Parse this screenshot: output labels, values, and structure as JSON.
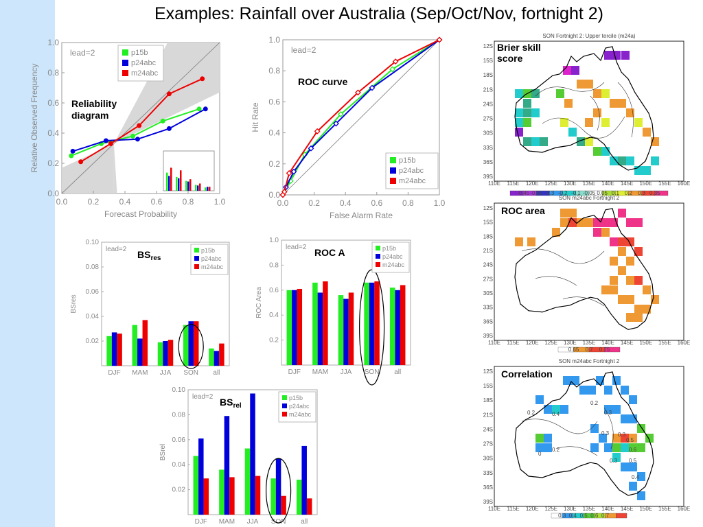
{
  "slide": {
    "title": "Examples: Rainfall over Australia (Sep/Oct/Nov, fortnight 2)",
    "left_band_color": "#cde6fb"
  },
  "series_colors": {
    "p15b": "#22ee22",
    "p24abc": "#0000dd",
    "m24abc": "#ee0000"
  },
  "chart_data": [
    {
      "id": "reliability",
      "type": "line",
      "annotation": "Reliability diagram",
      "lead_label": "lead=2",
      "xlabel": "Forecast Probability",
      "ylabel": "Relative Observed Frequency",
      "xlim": [
        0,
        1
      ],
      "ylim": [
        0,
        1
      ],
      "ticks": [
        "0.0",
        "0.2",
        "0.4",
        "0.6",
        "0.8",
        "1.0"
      ],
      "legend": {
        "placement": "top-left",
        "entries": [
          "p15b",
          "p24abc",
          "m24abc"
        ]
      },
      "series": [
        {
          "name": "p15b",
          "points": [
            [
              0.06,
              0.25
            ],
            [
              0.25,
              0.33
            ],
            [
              0.45,
              0.38
            ],
            [
              0.64,
              0.48
            ],
            [
              0.87,
              0.56
            ]
          ]
        },
        {
          "name": "p24abc",
          "points": [
            [
              0.07,
              0.28
            ],
            [
              0.28,
              0.35
            ],
            [
              0.48,
              0.36
            ],
            [
              0.68,
              0.43
            ],
            [
              0.91,
              0.56
            ]
          ]
        },
        {
          "name": "m24abc",
          "points": [
            [
              0.12,
              0.21
            ],
            [
              0.31,
              0.33
            ],
            [
              0.49,
              0.45
            ],
            [
              0.68,
              0.66
            ],
            [
              0.89,
              0.76
            ]
          ]
        }
      ],
      "inset_histogram": {
        "bins": 5,
        "p15b": [
          0.55,
          0.42,
          0.3,
          0.18,
          0.1
        ],
        "p24abc": [
          0.45,
          0.38,
          0.28,
          0.16,
          0.12
        ],
        "m24abc": [
          0.7,
          0.62,
          0.35,
          0.22,
          0.12
        ]
      }
    },
    {
      "id": "roc-curve",
      "type": "line",
      "annotation": "ROC curve",
      "lead_label": "lead=2",
      "xlabel": "False Alarm Rate",
      "ylabel": "Hit Rate",
      "xlim": [
        0,
        1
      ],
      "ylim": [
        0,
        1
      ],
      "ticks": [
        "0.0",
        "0.2",
        "0.4",
        "0.6",
        "0.8",
        "1.0"
      ],
      "legend": {
        "placement": "bottom-right",
        "entries": [
          "p15b",
          "p24abc",
          "m24abc"
        ]
      },
      "series": [
        {
          "name": "p15b",
          "points": [
            [
              0,
              0
            ],
            [
              0.05,
              0.09
            ],
            [
              0.14,
              0.26
            ],
            [
              0.37,
              0.52
            ],
            [
              0.7,
              0.81
            ],
            [
              1,
              1
            ]
          ]
        },
        {
          "name": "p24abc",
          "points": [
            [
              0,
              0
            ],
            [
              0.02,
              0.05
            ],
            [
              0.07,
              0.15
            ],
            [
              0.18,
              0.3
            ],
            [
              0.34,
              0.46
            ],
            [
              0.57,
              0.69
            ],
            [
              1,
              1
            ]
          ]
        },
        {
          "name": "m24abc",
          "points": [
            [
              0,
              0
            ],
            [
              0.01,
              0.02
            ],
            [
              0.04,
              0.14
            ],
            [
              0.22,
              0.41
            ],
            [
              0.48,
              0.66
            ],
            [
              0.72,
              0.86
            ],
            [
              1,
              1
            ]
          ]
        }
      ]
    },
    {
      "id": "bs-res",
      "type": "bar",
      "title": "BS",
      "title_sub": "res",
      "lead_label": "lead=2",
      "ylabel": "BSres",
      "ylim": [
        0,
        0.1
      ],
      "yticks": [
        "0.10",
        "0.08",
        "0.06",
        "0.04",
        "0.02"
      ],
      "categories": [
        "DJF",
        "MAM",
        "JJA",
        "SON",
        "all"
      ],
      "highlight": "SON",
      "legend": {
        "placement": "top-right",
        "entries": [
          "p15b",
          "p24abc",
          "m24abc"
        ]
      },
      "series": [
        {
          "name": "p15b",
          "values": [
            0.024,
            0.033,
            0.019,
            0.033,
            0.014
          ]
        },
        {
          "name": "p24abc",
          "values": [
            0.027,
            0.022,
            0.02,
            0.036,
            0.012
          ]
        },
        {
          "name": "m24abc",
          "values": [
            0.026,
            0.037,
            0.021,
            0.036,
            0.018
          ]
        }
      ]
    },
    {
      "id": "roc-a",
      "type": "bar",
      "title": "ROC A",
      "lead_label": "lead=2",
      "ylabel": "ROC Area",
      "ylim": [
        0,
        1.0
      ],
      "yticks": [
        "1.0",
        "0.8",
        "0.6",
        "0.4",
        "0.2"
      ],
      "categories": [
        "DJF",
        "MAM",
        "JJA",
        "SON",
        "all"
      ],
      "highlight": "SON",
      "legend": {
        "placement": "top-right",
        "entries": [
          "p15b",
          "p24abc",
          "m24abc"
        ]
      },
      "series": [
        {
          "name": "p15b",
          "values": [
            0.6,
            0.66,
            0.56,
            0.66,
            0.62
          ]
        },
        {
          "name": "p24abc",
          "values": [
            0.6,
            0.58,
            0.53,
            0.66,
            0.6
          ]
        },
        {
          "name": "m24abc",
          "values": [
            0.61,
            0.67,
            0.58,
            0.67,
            0.64
          ]
        }
      ]
    },
    {
      "id": "bs-rel",
      "type": "bar",
      "title": "BS",
      "title_sub": "rel",
      "lead_label": "lead=2",
      "ylabel": "BSrel",
      "ylim": [
        0,
        0.1
      ],
      "yticks": [
        "0.10",
        "0.08",
        "0.06",
        "0.04",
        "0.02"
      ],
      "categories": [
        "DJF",
        "MAM",
        "JJA",
        "SON",
        "all"
      ],
      "highlight": "SON",
      "legend": {
        "placement": "top-right",
        "entries": [
          "p15b",
          "p24abc",
          "m24abc"
        ]
      },
      "series": [
        {
          "name": "p15b",
          "values": [
            0.047,
            0.036,
            0.053,
            0.029,
            0.028
          ]
        },
        {
          "name": "p24abc",
          "values": [
            0.061,
            0.079,
            0.097,
            0.045,
            0.055
          ]
        },
        {
          "name": "m24abc",
          "values": [
            0.029,
            0.03,
            0.031,
            0.015,
            0.013
          ]
        }
      ]
    },
    {
      "id": "brier-map",
      "type": "heatmap",
      "title": "SON Fortnight 2: Upper tercile (m24a)",
      "annotation": "Brier skill score",
      "colorbar": [
        "-0.45",
        "-0.35",
        "-0.3",
        "-0.2",
        "-0.1",
        "-0.05",
        "0.05",
        "0.1",
        "0.2",
        "0.3",
        "0.35"
      ],
      "lat_ticks": [
        "12S",
        "15S",
        "18S",
        "21S",
        "24S",
        "27S",
        "30S",
        "33S",
        "36S",
        "39S"
      ],
      "lon_ticks": [
        "110E",
        "115E",
        "120E",
        "125E",
        "130E",
        "135E",
        "140E",
        "145E",
        "150E",
        "155E",
        "160E"
      ]
    },
    {
      "id": "roc-area-map",
      "type": "heatmap",
      "title": "SON m24abc Fortnight 2",
      "annotation": "ROC area",
      "colorbar": [
        "0.65",
        "0.7",
        "0.75"
      ],
      "lat_ticks": [
        "12S",
        "15S",
        "18S",
        "21S",
        "24S",
        "27S",
        "30S",
        "33S",
        "36S",
        "39S"
      ],
      "lon_ticks": [
        "110E",
        "115E",
        "120E",
        "125E",
        "130E",
        "135E",
        "140E",
        "145E",
        "150E",
        "155E",
        "160E"
      ]
    },
    {
      "id": "correlation-map",
      "type": "heatmap",
      "title": "SON m24abc Fortnight 2",
      "annotation": "Correlation",
      "colorbar": [
        "0.3",
        "0.4",
        "0.5",
        "0.6",
        "0.7"
      ],
      "contour_labels": [
        "0.2",
        "0.4",
        "0.2",
        "0.3",
        "0.3",
        "0.2",
        "0.3",
        "0.5",
        "0.6",
        "0.3",
        "0.5",
        "0.4",
        "0"
      ],
      "lat_ticks": [
        "12S",
        "15S",
        "18S",
        "21S",
        "24S",
        "27S",
        "30S",
        "33S",
        "36S",
        "39S"
      ],
      "lon_ticks": [
        "110E",
        "115E",
        "120E",
        "125E",
        "130E",
        "135E",
        "140E",
        "145E",
        "150E",
        "155E",
        "160E"
      ]
    }
  ]
}
